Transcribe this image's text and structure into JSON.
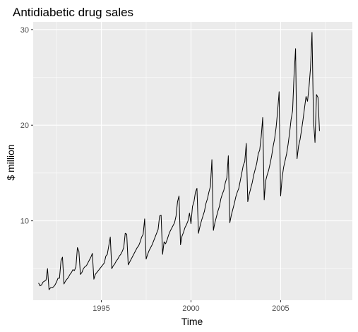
{
  "chart_data": {
    "type": "line",
    "title": "Antidiabetic drug sales",
    "xlabel": "Time",
    "ylabel": "$ million",
    "x_ticks": [
      1995,
      2000,
      2005
    ],
    "y_ticks": [
      10,
      20,
      30
    ],
    "xlim": [
      1991.2,
      2009.0
    ],
    "ylim": [
      1.7,
      30.8
    ],
    "grid": true,
    "legend": "none",
    "colors": {
      "panel": "#ebebeb",
      "grid_major": "#ffffff",
      "line": "#000000",
      "tick": "#333333"
    },
    "series": [
      {
        "start": [
          1991,
          7
        ],
        "frequency": 12,
        "values": [
          3.5,
          3.2,
          3.3,
          3.6,
          3.7,
          3.8,
          5.0,
          2.8,
          3.0,
          3.0,
          3.1,
          3.3,
          3.6,
          4.0,
          4.0,
          5.8,
          6.2,
          3.4,
          3.7,
          3.9,
          4.1,
          4.4,
          4.6,
          4.9,
          4.8,
          5.2,
          7.2,
          6.8,
          4.4,
          4.6,
          5.0,
          5.2,
          5.3,
          5.6,
          5.9,
          6.2,
          6.6,
          3.9,
          4.4,
          4.6,
          4.8,
          5.0,
          5.2,
          5.4,
          5.6,
          6.3,
          6.5,
          7.4,
          8.3,
          5.0,
          5.3,
          5.5,
          5.8,
          6.0,
          6.3,
          6.5,
          6.8,
          7.2,
          8.7,
          8.6,
          5.4,
          5.7,
          6.0,
          6.3,
          6.6,
          6.9,
          7.2,
          7.4,
          7.8,
          8.3,
          8.6,
          10.2,
          6.0,
          6.5,
          6.9,
          7.2,
          7.5,
          7.9,
          8.3,
          8.7,
          9.1,
          10.5,
          10.6,
          6.5,
          7.8,
          7.6,
          8.0,
          8.5,
          8.9,
          9.2,
          9.5,
          9.8,
          10.5,
          12.0,
          12.6,
          7.5,
          8.4,
          8.8,
          9.3,
          9.6,
          10.0,
          10.8,
          9.7,
          11.5,
          12.0,
          13.0,
          13.4,
          8.7,
          9.4,
          10.0,
          10.5,
          11.0,
          11.8,
          12.3,
          13.0,
          13.6,
          16.4,
          9.0,
          9.8,
          10.4,
          11.0,
          11.5,
          12.3,
          12.8,
          13.2,
          14.0,
          14.5,
          16.8,
          9.8,
          10.6,
          11.2,
          11.8,
          12.5,
          13.0,
          13.4,
          14.2,
          15.0,
          15.8,
          16.2,
          18.1,
          12.0,
          12.8,
          13.4,
          14.0,
          14.8,
          15.4,
          16.0,
          17.0,
          17.4,
          18.8,
          20.8,
          12.2,
          14.2,
          14.8,
          15.3,
          16.0,
          16.8,
          17.8,
          18.6,
          19.8,
          21.5,
          23.5,
          12.6,
          14.5,
          15.6,
          16.3,
          17.0,
          18.0,
          19.2,
          20.6,
          21.5,
          25.3,
          28.0,
          16.5,
          17.8,
          18.5,
          19.5,
          20.6,
          21.8,
          23.0,
          22.5,
          24.0,
          26.0,
          29.7,
          20.5,
          18.2,
          23.2,
          22.9,
          19.4
        ]
      }
    ]
  }
}
